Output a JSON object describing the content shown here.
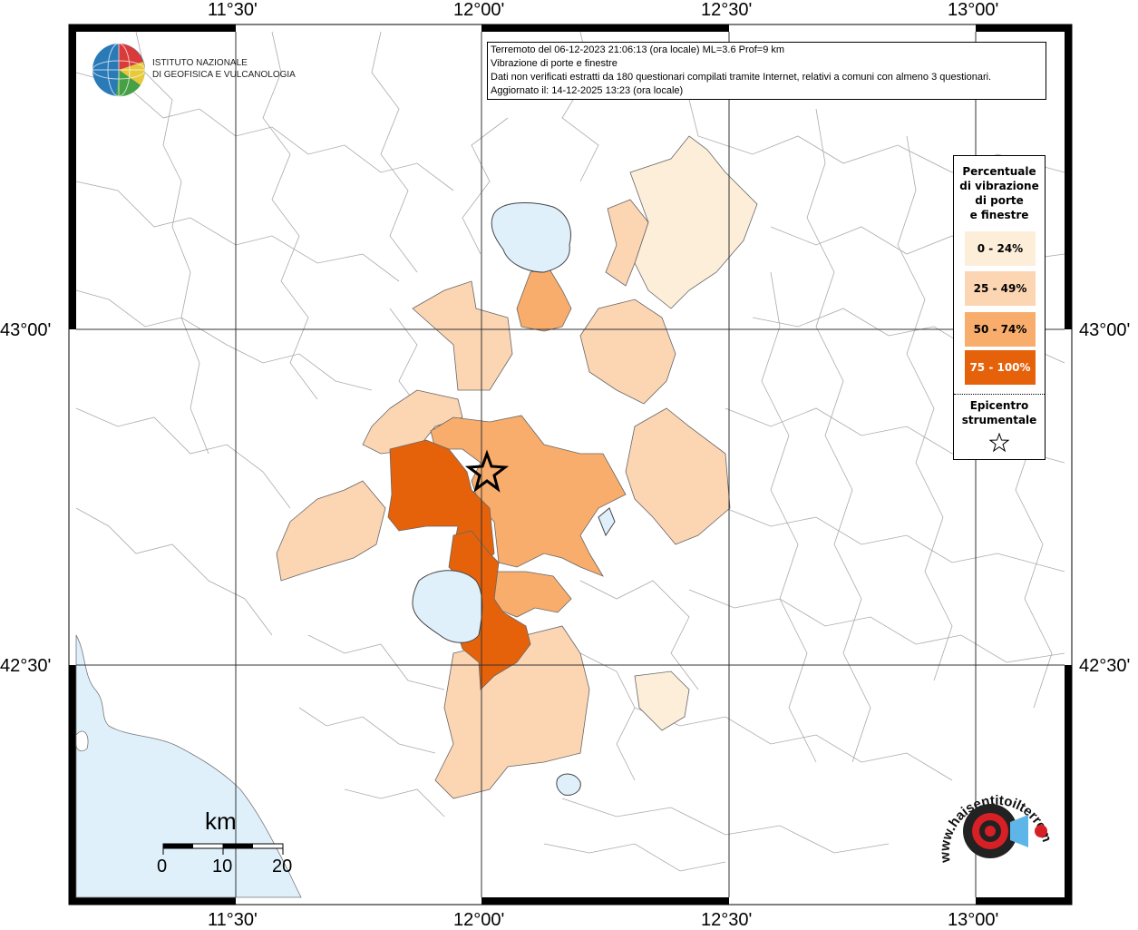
{
  "map": {
    "top_axis_labels": [
      "11°30'",
      "12°00'",
      "12°30'",
      "13°00'"
    ],
    "bottom_axis_labels": [
      "11°30'",
      "12°00'",
      "12°30'",
      "13°00'"
    ],
    "left_axis_labels": [
      "43°00'",
      "42°30'"
    ],
    "right_axis_labels": [
      "43°00'",
      "42°30'"
    ]
  },
  "info": {
    "line1": "Terremoto del 06-12-2023 21:06:13 (ora locale) ML=3.6 Prof=9 km",
    "line2": "Vibrazione di porte e finestre",
    "line3": "Dati non verificati estratti da 180 questionari compilati tramite Internet, relativi a comuni con almeno 3 questionari.",
    "line4": "Aggiornato il: 14-12-2025 13:23 (ora locale)"
  },
  "logo": {
    "ingv_line1": "ISTITUTO NAZIONALE",
    "ingv_line2": "DI GEOFISICA E VULCANOLOGIA",
    "hst_text": "www.haisentitoilterremoto.it"
  },
  "legend": {
    "title_lines": [
      "Percentuale",
      "di vibrazione",
      "di porte",
      "e finestre"
    ],
    "items": [
      {
        "label": "0 - 24%",
        "color": "#fdeeda",
        "text_color": "#000000"
      },
      {
        "label": "25 - 49%",
        "color": "#fcd5b3",
        "text_color": "#000000"
      },
      {
        "label": "50 - 74%",
        "color": "#f9ad6c",
        "text_color": "#000000"
      },
      {
        "label": "75 - 100%",
        "color": "#e5620b",
        "text_color": "#ffffff"
      }
    ],
    "epicenter_line1": "Epicentro",
    "epicenter_line2": "strumentale"
  },
  "scale": {
    "unit": "km",
    "labels": [
      "0",
      "10",
      "20"
    ]
  },
  "colors": {
    "water": "#dff0fb",
    "border": "#000000",
    "grid": "#333333"
  }
}
